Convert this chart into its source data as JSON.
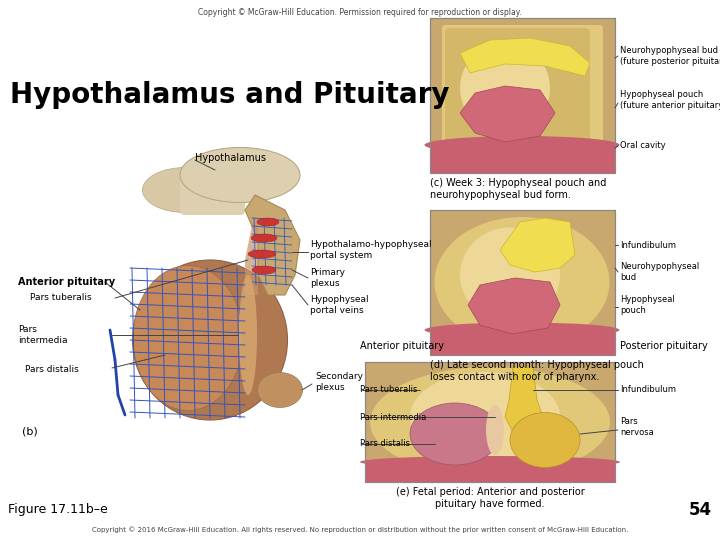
{
  "bg_color": "#ffffff",
  "title": "Hypothalamus and Pituitary",
  "title_fontsize": 20,
  "title_fontweight": "bold",
  "top_copyright": "Copyright © McGraw-Hill Education. Permission required for reproduction or display.",
  "bottom_copyright": "Copyright © 2016 McGraw-Hill Education. All rights reserved. No reproduction or distribution without the prior written consent of McGraw-Hill Education.",
  "figure_label": "Figure 17.11b–e",
  "page_number": "54",
  "panel_b_label": "(b)",
  "panel_c_caption": "(c) Week 3: Hypophyseal pouch and\nneurohypophyseal bud form.",
  "panel_d_caption": "(d) Late second month: Hypophyseal pouch\nloses contact with roof of pharynx.",
  "panel_e_caption": "(e) Fetal period: Anterior and posterior\npituitary have formed."
}
